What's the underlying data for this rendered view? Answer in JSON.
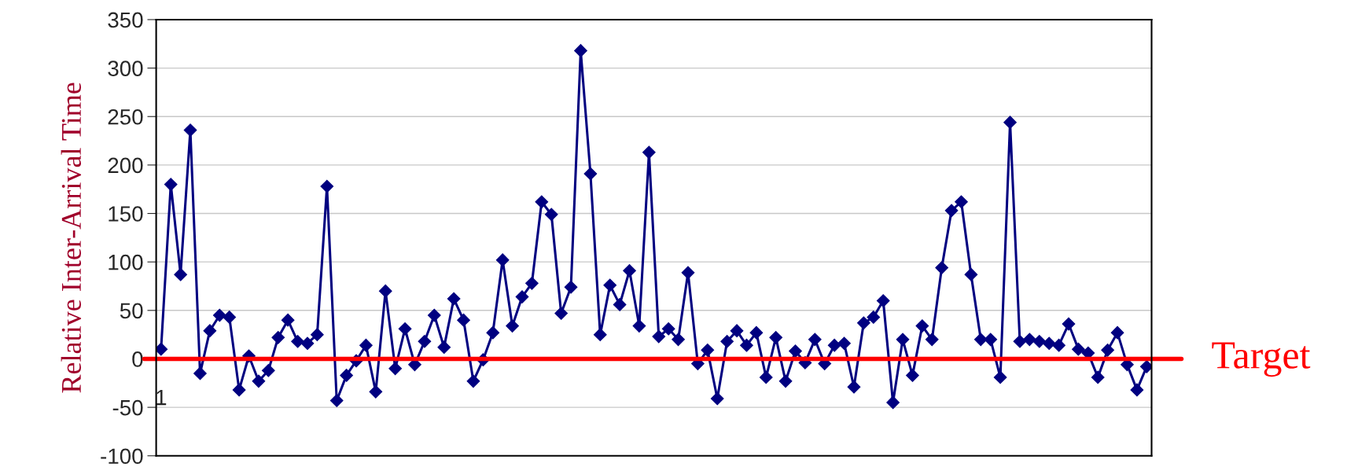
{
  "chart_data": {
    "type": "line",
    "ylabel": "Relative Inter-Arrival Time",
    "categories": [
      "1",
      null,
      null,
      null,
      null,
      null,
      null,
      null,
      null,
      null,
      null,
      null,
      null,
      null,
      null,
      null,
      null,
      null,
      null,
      null,
      null,
      null,
      null,
      null,
      null,
      null,
      null,
      null,
      null,
      null,
      null,
      null,
      null,
      null,
      null,
      null,
      null,
      null,
      null,
      null,
      null,
      null,
      null,
      null,
      null,
      null,
      null,
      null,
      null,
      null,
      null,
      null,
      null,
      null,
      null,
      null,
      null,
      null,
      null,
      null,
      null,
      null,
      null,
      null,
      null,
      null,
      null,
      null,
      null,
      null,
      null,
      null,
      null,
      null,
      null,
      null,
      null,
      null,
      null,
      null,
      null,
      null,
      null,
      null,
      null,
      null,
      null,
      null,
      null,
      null,
      null,
      null,
      null,
      null,
      null,
      null,
      null,
      null,
      null,
      null,
      null,
      null
    ],
    "series": [
      {
        "color": "#000080",
        "values": [
          10,
          180,
          87,
          236,
          -15,
          29,
          45,
          43,
          -32,
          3,
          -23,
          -12,
          22,
          40,
          18,
          16,
          25,
          178,
          -43,
          -17,
          -2,
          14,
          -34,
          70,
          -10,
          31,
          -6,
          18,
          45,
          12,
          62,
          40,
          -23,
          -1,
          27,
          102,
          34,
          64,
          78,
          162,
          149,
          47,
          74,
          318,
          191,
          25,
          76,
          56,
          91,
          34,
          213,
          23,
          31,
          20,
          89,
          -5,
          9,
          -41,
          18,
          29,
          14,
          27,
          -19,
          22,
          -23,
          8,
          -4,
          20,
          -5,
          14,
          16,
          -29,
          37,
          43,
          60,
          -45,
          20,
          -17,
          34,
          20,
          94,
          153,
          162,
          87,
          20,
          20,
          -19,
          244,
          18,
          20,
          18,
          16,
          14,
          36,
          10,
          6,
          -19,
          9,
          27,
          -6,
          -32,
          -8
        ]
      }
    ],
    "ylim": [
      -100,
      350
    ],
    "yticks": [
      -100,
      -50,
      0,
      50,
      100,
      150,
      200,
      250,
      300,
      350
    ],
    "ref_lines": [
      {
        "axis": "y",
        "value": 0,
        "label": "Target",
        "color": "#ff0000"
      }
    ],
    "grid": "y",
    "marker": "diamond",
    "line_style": "solid",
    "legend": false
  }
}
